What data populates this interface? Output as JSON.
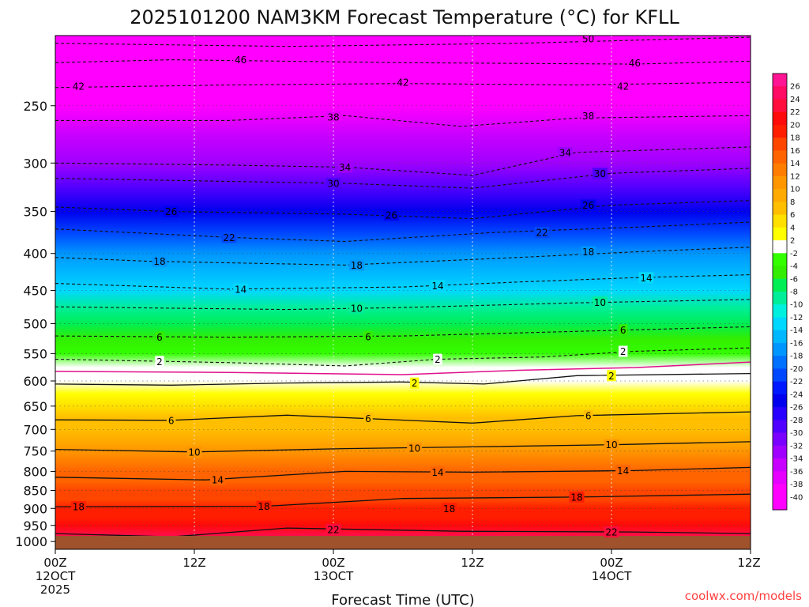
{
  "chart_data": {
    "type": "heatmap",
    "title": "2025101200 NAM3KM Forecast Temperature (°C) for KFLL",
    "xlabel": "Forecast Time (UTC)",
    "ylabel": "",
    "units": "°C",
    "credit": "coolwx.com/models",
    "y_axis": {
      "scale": "log-pressure",
      "range_hpa": [
        1025,
        200
      ],
      "ticks": [
        250,
        300,
        350,
        400,
        450,
        500,
        550,
        600,
        650,
        700,
        750,
        800,
        850,
        900,
        950,
        1000
      ]
    },
    "x_axis": {
      "range_hours": [
        0,
        60
      ],
      "ticks": [
        {
          "hour": 0,
          "lines": [
            "00Z",
            "12OCT",
            "2025"
          ]
        },
        {
          "hour": 12,
          "lines": [
            "12Z"
          ]
        },
        {
          "hour": 24,
          "lines": [
            "00Z",
            "13OCT"
          ]
        },
        {
          "hour": 36,
          "lines": [
            "12Z"
          ]
        },
        {
          "hour": 48,
          "lines": [
            "00Z",
            "14OCT"
          ]
        },
        {
          "hour": 60,
          "lines": [
            "12Z"
          ]
        }
      ]
    },
    "colorbar": {
      "labels": [
        "26",
        "24",
        "22",
        "20",
        "18",
        "16",
        "14",
        "12",
        "10",
        "8",
        "6",
        "4",
        "2",
        "-2",
        "-4",
        "-6",
        "-8",
        "-10",
        "-12",
        "-14",
        "-16",
        "-18",
        "-20",
        "-22",
        "-24",
        "-26",
        "-28",
        "-30",
        "-32",
        "-34",
        "-36",
        "-38",
        "-40"
      ],
      "colors": [
        "#ff1493",
        "#ff0a64",
        "#ff0d3d",
        "#ff0a0a",
        "#ff1e00",
        "#ff4600",
        "#ff6400",
        "#ff7d00",
        "#ff9600",
        "#ffaa00",
        "#ffbe00",
        "#ffe000",
        "#ffff00",
        "#ffffff",
        "#33ff00",
        "#33ee00",
        "#00ee55",
        "#00ee99",
        "#00f0e0",
        "#00d8ff",
        "#00b8ff",
        "#0096ff",
        "#0070ff",
        "#0048ff",
        "#0018ff",
        "#0000ee",
        "#2800ff",
        "#5000ff",
        "#7a00ff",
        "#a000ff",
        "#c800ff",
        "#e600ff",
        "#ff00ff",
        "#ff00ff"
      ]
    },
    "temperature_profile": [
      {
        "p": 1000,
        "t": 24.0
      },
      {
        "p": 975,
        "t": 22.5
      },
      {
        "p": 950,
        "t": 21.0
      },
      {
        "p": 925,
        "t": 19.8
      },
      {
        "p": 900,
        "t": 18.5
      },
      {
        "p": 875,
        "t": 17.5
      },
      {
        "p": 850,
        "t": 16.5
      },
      {
        "p": 825,
        "t": 15.3
      },
      {
        "p": 800,
        "t": 14.0
      },
      {
        "p": 775,
        "t": 12.2
      },
      {
        "p": 750,
        "t": 10.5
      },
      {
        "p": 725,
        "t": 9.0
      },
      {
        "p": 700,
        "t": 7.5
      },
      {
        "p": 675,
        "t": 6.0
      },
      {
        "p": 650,
        "t": 4.5
      },
      {
        "p": 625,
        "t": 3.0
      },
      {
        "p": 600,
        "t": 1.5
      },
      {
        "p": 575,
        "t": 0.0
      },
      {
        "p": 550,
        "t": -3.0
      },
      {
        "p": 525,
        "t": -5.0
      },
      {
        "p": 500,
        "t": -7.5
      },
      {
        "p": 475,
        "t": -9.5
      },
      {
        "p": 450,
        "t": -12.5
      },
      {
        "p": 425,
        "t": -14.5
      },
      {
        "p": 400,
        "t": -17.5
      },
      {
        "p": 375,
        "t": -20.5
      },
      {
        "p": 350,
        "t": -24.5
      },
      {
        "p": 325,
        "t": -28.5
      },
      {
        "p": 300,
        "t": -32.5
      },
      {
        "p": 275,
        "t": -36.0
      },
      {
        "p": 250,
        "t": -39.5
      },
      {
        "p": 225,
        "t": -43.5
      },
      {
        "p": 200,
        "t": -48.0
      }
    ],
    "contours": [
      {
        "level": -50,
        "style": "dashed",
        "points": [
          [
            0,
            205
          ],
          [
            20,
            207
          ],
          [
            40,
            205
          ],
          [
            60,
            201
          ]
        ],
        "labels": [
          [
            46,
            202
          ]
        ]
      },
      {
        "level": -46,
        "style": "dashed",
        "points": [
          [
            0,
            218
          ],
          [
            10,
            216
          ],
          [
            30,
            218
          ],
          [
            50,
            219
          ],
          [
            60,
            217
          ]
        ],
        "labels": [
          [
            16,
            216
          ],
          [
            50,
            218
          ]
        ]
      },
      {
        "level": -42,
        "style": "dashed",
        "points": [
          [
            0,
            236
          ],
          [
            15,
            234
          ],
          [
            30,
            233
          ],
          [
            45,
            234
          ],
          [
            60,
            232
          ]
        ],
        "labels": [
          [
            2,
            235
          ],
          [
            30,
            232
          ],
          [
            49,
            235
          ]
        ]
      },
      {
        "level": -38,
        "style": "dashed",
        "points": [
          [
            0,
            262
          ],
          [
            15,
            262
          ],
          [
            25,
            258
          ],
          [
            35,
            267
          ],
          [
            45,
            260
          ],
          [
            60,
            258
          ]
        ],
        "labels": [
          [
            24,
            259
          ],
          [
            46,
            258
          ]
        ]
      },
      {
        "level": -34,
        "style": "dashed",
        "points": [
          [
            0,
            300
          ],
          [
            15,
            302
          ],
          [
            25,
            304
          ],
          [
            36,
            312
          ],
          [
            45,
            290
          ],
          [
            60,
            285
          ]
        ],
        "labels": [
          [
            25,
            304
          ],
          [
            44,
            290
          ]
        ]
      },
      {
        "level": -30,
        "style": "dashed",
        "points": [
          [
            0,
            315
          ],
          [
            15,
            318
          ],
          [
            25,
            320
          ],
          [
            36,
            325
          ],
          [
            48,
            310
          ],
          [
            60,
            305
          ]
        ],
        "labels": [
          [
            24,
            320
          ],
          [
            47,
            310
          ]
        ]
      },
      {
        "level": -26,
        "style": "dashed",
        "points": [
          [
            0,
            345
          ],
          [
            10,
            350
          ],
          [
            25,
            353
          ],
          [
            36,
            358
          ],
          [
            48,
            343
          ],
          [
            60,
            338
          ]
        ],
        "labels": [
          [
            10,
            350
          ],
          [
            29,
            354
          ],
          [
            46,
            343
          ]
        ]
      },
      {
        "level": -22,
        "style": "dashed",
        "points": [
          [
            0,
            370
          ],
          [
            15,
            380
          ],
          [
            25,
            385
          ],
          [
            38,
            374
          ],
          [
            50,
            368
          ],
          [
            60,
            362
          ]
        ],
        "labels": [
          [
            15,
            380
          ],
          [
            42,
            374
          ]
        ]
      },
      {
        "level": -18,
        "style": "dashed",
        "points": [
          [
            0,
            405
          ],
          [
            8,
            410
          ],
          [
            25,
            415
          ],
          [
            40,
            405
          ],
          [
            50,
            398
          ],
          [
            60,
            392
          ]
        ],
        "labels": [
          [
            9,
            410
          ],
          [
            26,
            415
          ],
          [
            46,
            398
          ]
        ]
      },
      {
        "level": -14,
        "style": "dashed",
        "points": [
          [
            0,
            440
          ],
          [
            15,
            448
          ],
          [
            30,
            445
          ],
          [
            40,
            438
          ],
          [
            50,
            432
          ],
          [
            60,
            428
          ]
        ],
        "labels": [
          [
            16,
            448
          ],
          [
            33,
            443
          ],
          [
            51,
            432
          ]
        ]
      },
      {
        "level": -10,
        "style": "dashed",
        "points": [
          [
            0,
            474
          ],
          [
            20,
            478
          ],
          [
            30,
            475
          ],
          [
            45,
            468
          ],
          [
            60,
            463
          ]
        ],
        "labels": [
          [
            26,
            476
          ],
          [
            47,
            467
          ]
        ]
      },
      {
        "level": -6,
        "style": "dashed",
        "points": [
          [
            0,
            520
          ],
          [
            15,
            522
          ],
          [
            30,
            520
          ],
          [
            40,
            515
          ],
          [
            50,
            510
          ],
          [
            60,
            505
          ]
        ],
        "labels": [
          [
            9,
            522
          ],
          [
            27,
            521
          ],
          [
            49,
            510
          ]
        ]
      },
      {
        "level": -2,
        "style": "dashed",
        "points": [
          [
            0,
            560
          ],
          [
            15,
            566
          ],
          [
            25,
            572
          ],
          [
            33,
            560
          ],
          [
            42,
            556
          ],
          [
            50,
            546
          ],
          [
            60,
            540
          ]
        ],
        "labels": [
          [
            9,
            564
          ],
          [
            33,
            560
          ],
          [
            49,
            546
          ]
        ]
      },
      {
        "level": 0,
        "style": "magenta",
        "points": [
          [
            0,
            582
          ],
          [
            15,
            584
          ],
          [
            30,
            588
          ],
          [
            40,
            580
          ],
          [
            50,
            575
          ],
          [
            60,
            565
          ]
        ],
        "labels": []
      },
      {
        "level": 2,
        "style": "solid",
        "points": [
          [
            0,
            606
          ],
          [
            10,
            608
          ],
          [
            20,
            604
          ],
          [
            30,
            602
          ],
          [
            37,
            606
          ],
          [
            45,
            590
          ],
          [
            60,
            586
          ]
        ],
        "labels": [
          [
            31,
            604
          ],
          [
            48,
            590
          ]
        ]
      },
      {
        "level": 6,
        "style": "solid",
        "points": [
          [
            0,
            679
          ],
          [
            10,
            680
          ],
          [
            20,
            669
          ],
          [
            36,
            686
          ],
          [
            45,
            670
          ],
          [
            60,
            662
          ]
        ],
        "labels": [
          [
            10,
            680
          ],
          [
            27,
            676
          ],
          [
            46,
            670
          ]
        ]
      },
      {
        "level": 10,
        "style": "solid",
        "points": [
          [
            0,
            746
          ],
          [
            12,
            752
          ],
          [
            25,
            744
          ],
          [
            36,
            740
          ],
          [
            48,
            735
          ],
          [
            60,
            728
          ]
        ],
        "labels": [
          [
            12,
            752
          ],
          [
            31,
            743
          ],
          [
            48,
            735
          ]
        ]
      },
      {
        "level": 14,
        "style": "solid",
        "points": [
          [
            0,
            815
          ],
          [
            13,
            822
          ],
          [
            25,
            800
          ],
          [
            36,
            802
          ],
          [
            50,
            798
          ],
          [
            60,
            790
          ]
        ],
        "labels": [
          [
            14,
            822
          ],
          [
            33,
            802
          ],
          [
            49,
            798
          ]
        ]
      },
      {
        "level": 18,
        "style": "solid",
        "points": [
          [
            0,
            895
          ],
          [
            18,
            894
          ],
          [
            30,
            872
          ],
          [
            45,
            868
          ],
          [
            60,
            860
          ]
        ],
        "labels": [
          [
            2,
            895
          ],
          [
            18,
            894
          ],
          [
            34,
            900
          ],
          [
            45,
            868
          ]
        ]
      },
      {
        "level": 22,
        "style": "solid",
        "points": [
          [
            0,
            975
          ],
          [
            10,
            985
          ],
          [
            20,
            958
          ],
          [
            35,
            968
          ],
          [
            50,
            970
          ],
          [
            60,
            975
          ]
        ],
        "labels": [
          [
            24,
            962
          ],
          [
            48,
            970
          ]
        ]
      }
    ]
  }
}
